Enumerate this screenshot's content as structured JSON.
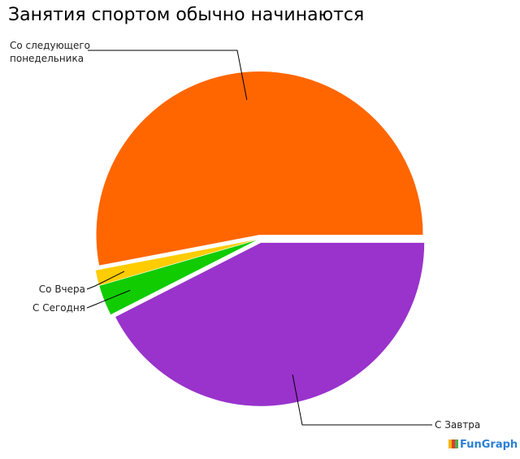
{
  "chart_data": {
    "type": "pie",
    "title": "Занятия спортом обычно начинаются",
    "slices": [
      {
        "label": "Со следующего понедельника",
        "label_lines": [
          "Со следующего",
          "понедельника"
        ],
        "value": 53,
        "color": "#ff6600"
      },
      {
        "label": "Со Вчера",
        "label_lines": [
          "Со Вчера"
        ],
        "value": 1.5,
        "color": "#ffcc00"
      },
      {
        "label": "С Сегодня",
        "label_lines": [
          "С Сегодня"
        ],
        "value": 3,
        "color": "#11cc00"
      },
      {
        "label": "С Завтра",
        "label_lines": [
          "С Завтра"
        ],
        "value": 42.5,
        "color": "#9933cc"
      }
    ],
    "exploded": true,
    "legend": "none"
  },
  "logo": "FunGraph"
}
